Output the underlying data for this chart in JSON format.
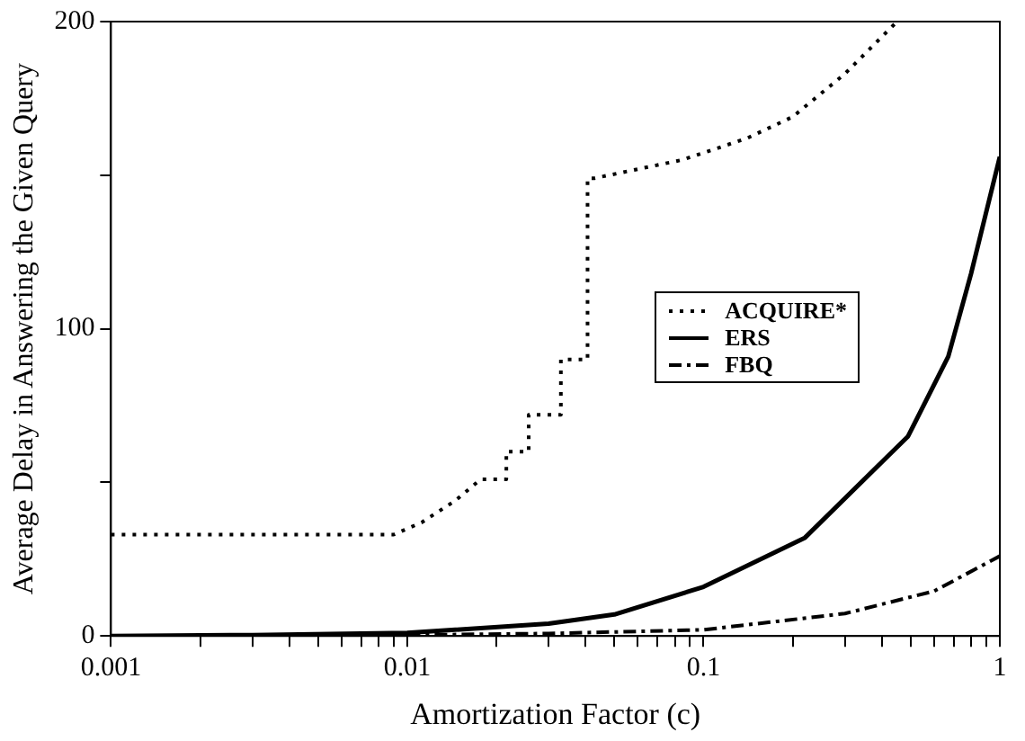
{
  "chart_data": {
    "type": "line",
    "xlabel": "Amortization Factor (c)",
    "ylabel": "Average Delay in Answering the Given Query",
    "log": "x",
    "xlim": [
      0.001,
      1
    ],
    "xticks": [
      0.001,
      {
        "value": 0.002,
        "label": null
      },
      {
        "value": 0.003,
        "label": null
      },
      {
        "value": 0.004,
        "label": null
      },
      {
        "value": 0.005,
        "label": null
      },
      {
        "value": 0.006,
        "label": null
      },
      {
        "value": 0.007,
        "label": null
      },
      {
        "value": 0.008,
        "label": null
      },
      {
        "value": 0.009,
        "label": null
      },
      0.01,
      {
        "value": 0.02,
        "label": null
      },
      {
        "value": 0.03,
        "label": null
      },
      {
        "value": 0.04,
        "label": null
      },
      {
        "value": 0.05,
        "label": null
      },
      {
        "value": 0.06,
        "label": null
      },
      {
        "value": 0.07,
        "label": null
      },
      {
        "value": 0.08,
        "label": null
      },
      {
        "value": 0.09,
        "label": null
      },
      0.1,
      {
        "value": 0.2,
        "label": null
      },
      {
        "value": 0.3,
        "label": null
      },
      {
        "value": 0.4,
        "label": null
      },
      {
        "value": 0.5,
        "label": null
      },
      {
        "value": 0.6,
        "label": null
      },
      {
        "value": 0.7,
        "label": null
      },
      {
        "value": 0.8,
        "label": null
      },
      {
        "value": 0.9,
        "label": null
      },
      1
    ],
    "ylim": [
      0,
      200
    ],
    "yticks": [
      0,
      {
        "value": 50,
        "label": null
      },
      100,
      {
        "value": 150,
        "label": null
      },
      200
    ],
    "grid": false,
    "legend": "right",
    "marker": "none",
    "series": [
      {
        "name": "ACQUIRE*",
        "color": "#000000",
        "line_style": "dotted",
        "x": [
          0.001,
          0.009,
          0.0112,
          0.0145,
          0.0177,
          0.0216,
          0.0216,
          0.0257,
          0.0257,
          0.033,
          0.033,
          0.0406,
          0.0406,
          0.0428,
          0.085,
          0.14,
          0.2,
          0.3,
          0.45
        ],
        "values": [
          33,
          33,
          37,
          44,
          51,
          51,
          60,
          60,
          72,
          72,
          90,
          90,
          149,
          149,
          155,
          162,
          169,
          183,
          200
        ]
      },
      {
        "name": "ERS",
        "color": "#000000",
        "line_style": "solid",
        "x": [
          0.001,
          0.003,
          0.01,
          0.03,
          0.05,
          0.1,
          0.22,
          0.49,
          0.67,
          0.8,
          1
        ],
        "values": [
          0,
          0.3,
          1,
          4,
          7,
          16,
          32,
          65,
          91,
          118,
          156
        ]
      },
      {
        "name": "FBQ",
        "color": "#000000",
        "line_style": "dashed",
        "x": [
          0.001,
          0.01,
          0.03,
          0.1,
          0.3,
          0.6,
          1
        ],
        "values": [
          0,
          0.3,
          0.8,
          2,
          7.3,
          14.6,
          26
        ]
      }
    ]
  }
}
